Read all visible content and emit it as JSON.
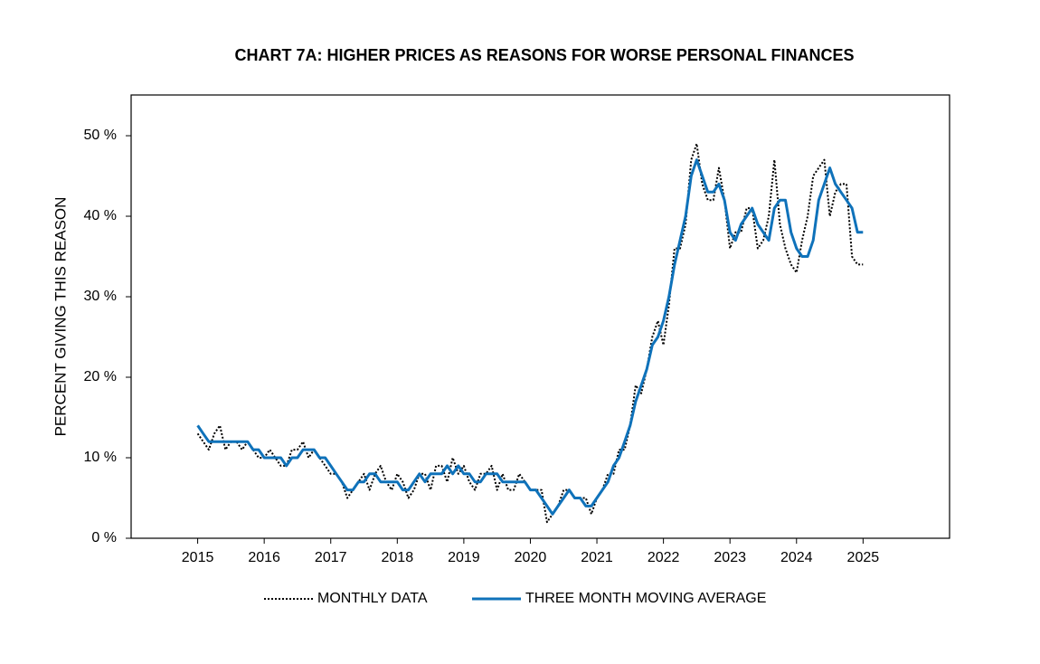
{
  "chart_data": {
    "type": "line",
    "title": "CHART 7A: HIGHER PRICES AS REASONS FOR WORSE PERSONAL FINANCES",
    "y_label": "PERCENT GIVING THIS REASON",
    "x": [
      2015,
      2015.083,
      2015.167,
      2015.25,
      2015.333,
      2015.417,
      2015.5,
      2015.583,
      2015.667,
      2015.75,
      2015.833,
      2015.917,
      2016,
      2016.083,
      2016.167,
      2016.25,
      2016.333,
      2016.417,
      2016.5,
      2016.583,
      2016.667,
      2016.75,
      2016.833,
      2016.917,
      2017,
      2017.083,
      2017.167,
      2017.25,
      2017.333,
      2017.417,
      2017.5,
      2017.583,
      2017.667,
      2017.75,
      2017.833,
      2017.917,
      2018,
      2018.083,
      2018.167,
      2018.25,
      2018.333,
      2018.417,
      2018.5,
      2018.583,
      2018.667,
      2018.75,
      2018.833,
      2018.917,
      2019,
      2019.083,
      2019.167,
      2019.25,
      2019.333,
      2019.417,
      2019.5,
      2019.583,
      2019.667,
      2019.75,
      2019.833,
      2019.917,
      2020,
      2020.083,
      2020.167,
      2020.25,
      2020.333,
      2020.417,
      2020.5,
      2020.583,
      2020.667,
      2020.75,
      2020.833,
      2020.917,
      2021,
      2021.083,
      2021.167,
      2021.25,
      2021.333,
      2021.417,
      2021.5,
      2021.583,
      2021.667,
      2021.75,
      2021.833,
      2021.917,
      2022,
      2022.083,
      2022.167,
      2022.25,
      2022.333,
      2022.417,
      2022.5,
      2022.583,
      2022.667,
      2022.75,
      2022.833,
      2022.917,
      2023,
      2023.083,
      2023.167,
      2023.25,
      2023.333,
      2023.417,
      2023.5,
      2023.583,
      2023.667,
      2023.75,
      2023.833,
      2023.917,
      2024,
      2024.083,
      2024.167,
      2024.25,
      2024.333,
      2024.417,
      2024.5,
      2024.583,
      2024.667,
      2024.75,
      2024.833,
      2024.917,
      2025
    ],
    "series": [
      {
        "name": "MONTHLY DATA",
        "color": "#000000",
        "dash": true,
        "values": [
          13,
          12,
          11,
          13,
          14,
          11,
          12,
          12,
          11,
          12,
          11,
          10,
          10,
          11,
          10,
          9,
          9,
          11,
          11,
          12,
          10,
          11,
          10,
          9,
          8,
          8,
          7,
          5,
          6,
          7,
          8,
          6,
          8,
          9,
          7,
          6,
          8,
          7,
          5,
          6,
          8,
          8,
          6,
          9,
          9,
          7,
          10,
          8,
          9,
          7,
          6,
          8,
          8,
          9,
          6,
          8,
          6,
          6,
          8,
          7,
          6,
          6,
          6,
          2,
          3,
          4,
          6,
          6,
          5,
          5,
          5,
          3,
          5,
          6,
          8,
          8,
          11,
          11,
          14,
          19,
          18,
          21,
          25,
          27,
          24,
          29,
          36,
          36,
          39,
          47,
          49,
          44,
          42,
          42,
          46,
          42,
          36,
          38,
          38,
          41,
          41,
          36,
          37,
          40,
          47,
          39,
          36,
          34,
          33,
          37,
          40,
          45,
          46,
          47,
          40,
          43,
          44,
          44,
          35,
          34,
          34
        ]
      },
      {
        "name": "THREE MONTH MOVING AVERAGE",
        "color": "#0f72ba",
        "dash": false,
        "values": [
          14,
          13,
          12,
          12,
          12,
          12,
          12,
          12,
          12,
          12,
          11,
          11,
          10,
          10,
          10,
          10,
          9,
          10,
          10,
          11,
          11,
          11,
          10,
          10,
          9,
          8,
          7,
          6,
          6,
          7,
          7,
          8,
          8,
          7,
          7,
          7,
          7,
          6,
          6,
          7,
          8,
          7,
          8,
          8,
          8,
          9,
          8,
          9,
          8,
          8,
          7,
          7,
          8,
          8,
          8,
          7,
          7,
          7,
          7,
          7,
          6,
          6,
          5,
          4,
          3,
          4,
          5,
          6,
          5,
          5,
          4,
          4,
          5,
          6,
          7,
          9,
          10,
          12,
          14,
          17,
          19,
          21,
          24,
          25,
          27,
          30,
          34,
          37,
          40,
          45,
          47,
          45,
          43,
          43,
          44,
          42,
          38,
          37,
          39,
          40,
          41,
          39,
          38,
          37,
          41,
          42,
          42,
          38,
          36,
          35,
          35,
          37,
          42,
          44,
          46,
          44,
          43,
          42,
          41,
          38,
          38
        ]
      }
    ],
    "xlim": [
      2014,
      2026.3
    ],
    "xticks": [
      2015,
      2016,
      2017,
      2018,
      2019,
      2020,
      2021,
      2022,
      2023,
      2024,
      2025
    ],
    "ylim": [
      0,
      55.06
    ],
    "yticks": [
      {
        "value": 0,
        "label": "0 %"
      },
      {
        "value": 10,
        "label": "10 %"
      },
      {
        "value": 20,
        "label": "20 %"
      },
      {
        "value": 30,
        "label": "30 %"
      },
      {
        "value": 40,
        "label": "40 %"
      },
      {
        "value": 50,
        "label": "50 %"
      }
    ],
    "legend": "bottom"
  }
}
